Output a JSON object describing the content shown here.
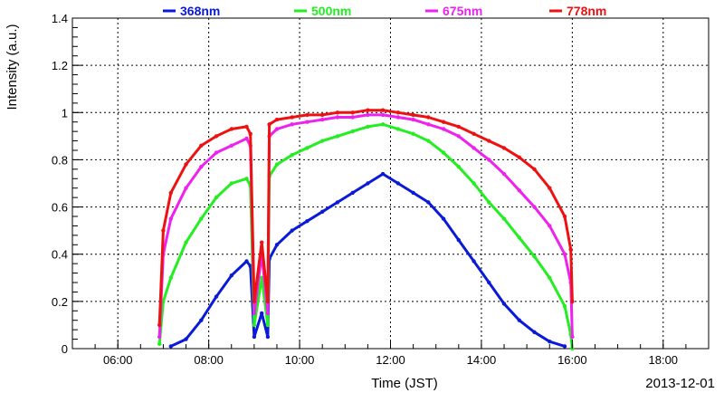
{
  "chart_data": {
    "type": "scatter",
    "title": "",
    "xlabel": "Time (JST)",
    "ylabel": "Intensity (a.u.)",
    "date_label": "2013-12-01",
    "xlim": [
      "05:00",
      "19:00"
    ],
    "ylim": [
      0,
      1.4
    ],
    "x_ticks": [
      "06:00",
      "08:00",
      "10:00",
      "12:00",
      "14:00",
      "16:00",
      "18:00"
    ],
    "y_ticks": [
      "0",
      "0.2",
      "0.4",
      "0.6",
      "0.8",
      "1",
      "1.2",
      "1.4"
    ],
    "grid": true,
    "legend_position": "top",
    "series": [
      {
        "name": "368nm",
        "color": "#0a1ad6",
        "x": [
          "07:10",
          "07:30",
          "07:50",
          "08:10",
          "08:30",
          "08:50",
          "08:55",
          "09:00",
          "09:10",
          "09:18",
          "09:20",
          "09:30",
          "09:50",
          "10:10",
          "10:30",
          "10:50",
          "11:10",
          "11:30",
          "11:50",
          "12:10",
          "12:30",
          "12:50",
          "13:10",
          "13:30",
          "13:50",
          "14:10",
          "14:30",
          "14:50",
          "15:10",
          "15:30",
          "15:50"
        ],
        "y": [
          0.01,
          0.04,
          0.12,
          0.22,
          0.31,
          0.37,
          0.35,
          0.05,
          0.15,
          0.05,
          0.38,
          0.44,
          0.5,
          0.54,
          0.58,
          0.62,
          0.66,
          0.7,
          0.74,
          0.7,
          0.66,
          0.62,
          0.55,
          0.46,
          0.37,
          0.28,
          0.19,
          0.12,
          0.07,
          0.03,
          0.01
        ]
      },
      {
        "name": "500nm",
        "color": "#22ee22",
        "x": [
          "06:55",
          "07:00",
          "07:10",
          "07:30",
          "07:50",
          "08:10",
          "08:30",
          "08:50",
          "08:55",
          "09:00",
          "09:10",
          "09:18",
          "09:20",
          "09:30",
          "09:50",
          "10:10",
          "10:30",
          "10:50",
          "11:10",
          "11:30",
          "11:50",
          "12:10",
          "12:30",
          "12:50",
          "13:10",
          "13:30",
          "13:50",
          "14:10",
          "14:30",
          "14:50",
          "15:10",
          "15:30",
          "15:50",
          "15:58",
          "16:00"
        ],
        "y": [
          0.02,
          0.2,
          0.3,
          0.45,
          0.55,
          0.64,
          0.7,
          0.72,
          0.69,
          0.1,
          0.3,
          0.1,
          0.73,
          0.78,
          0.82,
          0.85,
          0.88,
          0.9,
          0.92,
          0.94,
          0.95,
          0.93,
          0.91,
          0.88,
          0.83,
          0.77,
          0.7,
          0.62,
          0.55,
          0.47,
          0.39,
          0.3,
          0.18,
          0.06,
          0.0
        ]
      },
      {
        "name": "675nm",
        "color": "#ee22ee",
        "x": [
          "06:55",
          "07:00",
          "07:10",
          "07:30",
          "07:50",
          "08:10",
          "08:30",
          "08:50",
          "08:55",
          "09:00",
          "09:10",
          "09:18",
          "09:20",
          "09:30",
          "09:50",
          "10:10",
          "10:30",
          "10:50",
          "11:10",
          "11:30",
          "11:50",
          "12:10",
          "12:30",
          "12:50",
          "13:10",
          "13:30",
          "13:50",
          "14:10",
          "14:30",
          "14:50",
          "15:10",
          "15:30",
          "15:50",
          "15:58",
          "16:00"
        ],
        "y": [
          0.05,
          0.4,
          0.55,
          0.68,
          0.77,
          0.83,
          0.86,
          0.89,
          0.86,
          0.15,
          0.4,
          0.15,
          0.9,
          0.93,
          0.95,
          0.96,
          0.97,
          0.98,
          0.98,
          0.99,
          0.99,
          0.98,
          0.97,
          0.95,
          0.93,
          0.9,
          0.85,
          0.8,
          0.74,
          0.67,
          0.6,
          0.52,
          0.4,
          0.28,
          0.05
        ]
      },
      {
        "name": "778nm",
        "color": "#ee1111",
        "x": [
          "06:55",
          "07:00",
          "07:10",
          "07:30",
          "07:50",
          "08:10",
          "08:30",
          "08:50",
          "08:55",
          "09:00",
          "09:10",
          "09:18",
          "09:20",
          "09:30",
          "09:50",
          "10:10",
          "10:30",
          "10:50",
          "11:10",
          "11:30",
          "11:50",
          "12:10",
          "12:30",
          "12:50",
          "13:10",
          "13:30",
          "13:50",
          "14:10",
          "14:30",
          "14:50",
          "15:10",
          "15:30",
          "15:50",
          "15:58",
          "16:00"
        ],
        "y": [
          0.1,
          0.5,
          0.66,
          0.78,
          0.86,
          0.9,
          0.93,
          0.94,
          0.91,
          0.2,
          0.45,
          0.2,
          0.95,
          0.97,
          0.98,
          0.99,
          0.99,
          1.0,
          1.0,
          1.01,
          1.01,
          1.0,
          0.99,
          0.98,
          0.96,
          0.94,
          0.91,
          0.88,
          0.85,
          0.81,
          0.76,
          0.68,
          0.56,
          0.42,
          0.2
        ]
      }
    ]
  }
}
